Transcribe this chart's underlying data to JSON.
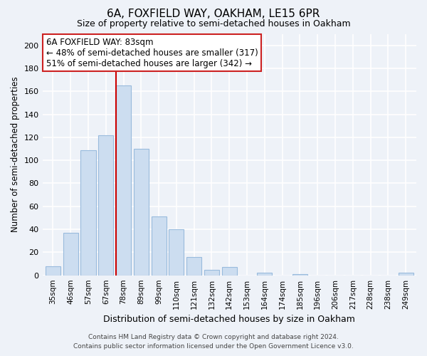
{
  "title": "6A, FOXFIELD WAY, OAKHAM, LE15 6PR",
  "subtitle": "Size of property relative to semi-detached houses in Oakham",
  "xlabel": "Distribution of semi-detached houses by size in Oakham",
  "ylabel": "Number of semi-detached properties",
  "categories": [
    "35sqm",
    "46sqm",
    "57sqm",
    "67sqm",
    "78sqm",
    "89sqm",
    "99sqm",
    "110sqm",
    "121sqm",
    "132sqm",
    "142sqm",
    "153sqm",
    "164sqm",
    "174sqm",
    "185sqm",
    "196sqm",
    "206sqm",
    "217sqm",
    "228sqm",
    "238sqm",
    "249sqm"
  ],
  "values": [
    8,
    37,
    109,
    122,
    165,
    110,
    51,
    40,
    16,
    5,
    7,
    0,
    2,
    0,
    1,
    0,
    0,
    0,
    0,
    0,
    2
  ],
  "bar_color": "#ccddf0",
  "bar_edge_color": "#99bbdd",
  "vline_x": 3.58,
  "vline_color": "#cc0000",
  "annotation_title": "6A FOXFIELD WAY: 83sqm",
  "annotation_line1": "← 48% of semi-detached houses are smaller (317)",
  "annotation_line2": "51% of semi-detached houses are larger (342) →",
  "annotation_box_facecolor": "#ffffff",
  "annotation_box_edgecolor": "#cc2222",
  "ylim": [
    0,
    210
  ],
  "yticks": [
    0,
    20,
    40,
    60,
    80,
    100,
    120,
    140,
    160,
    180,
    200
  ],
  "footer_line1": "Contains HM Land Registry data © Crown copyright and database right 2024.",
  "footer_line2": "Contains public sector information licensed under the Open Government Licence v3.0.",
  "bg_color": "#eef2f8",
  "plot_bg_color": "#eef2f8",
  "grid_color": "#ffffff",
  "title_fontsize": 11,
  "subtitle_fontsize": 9,
  "ylabel_fontsize": 8.5,
  "xlabel_fontsize": 9,
  "tick_fontsize": 8,
  "xtick_fontsize": 7.5,
  "annotation_fontsize": 8.5,
  "footer_fontsize": 6.5
}
